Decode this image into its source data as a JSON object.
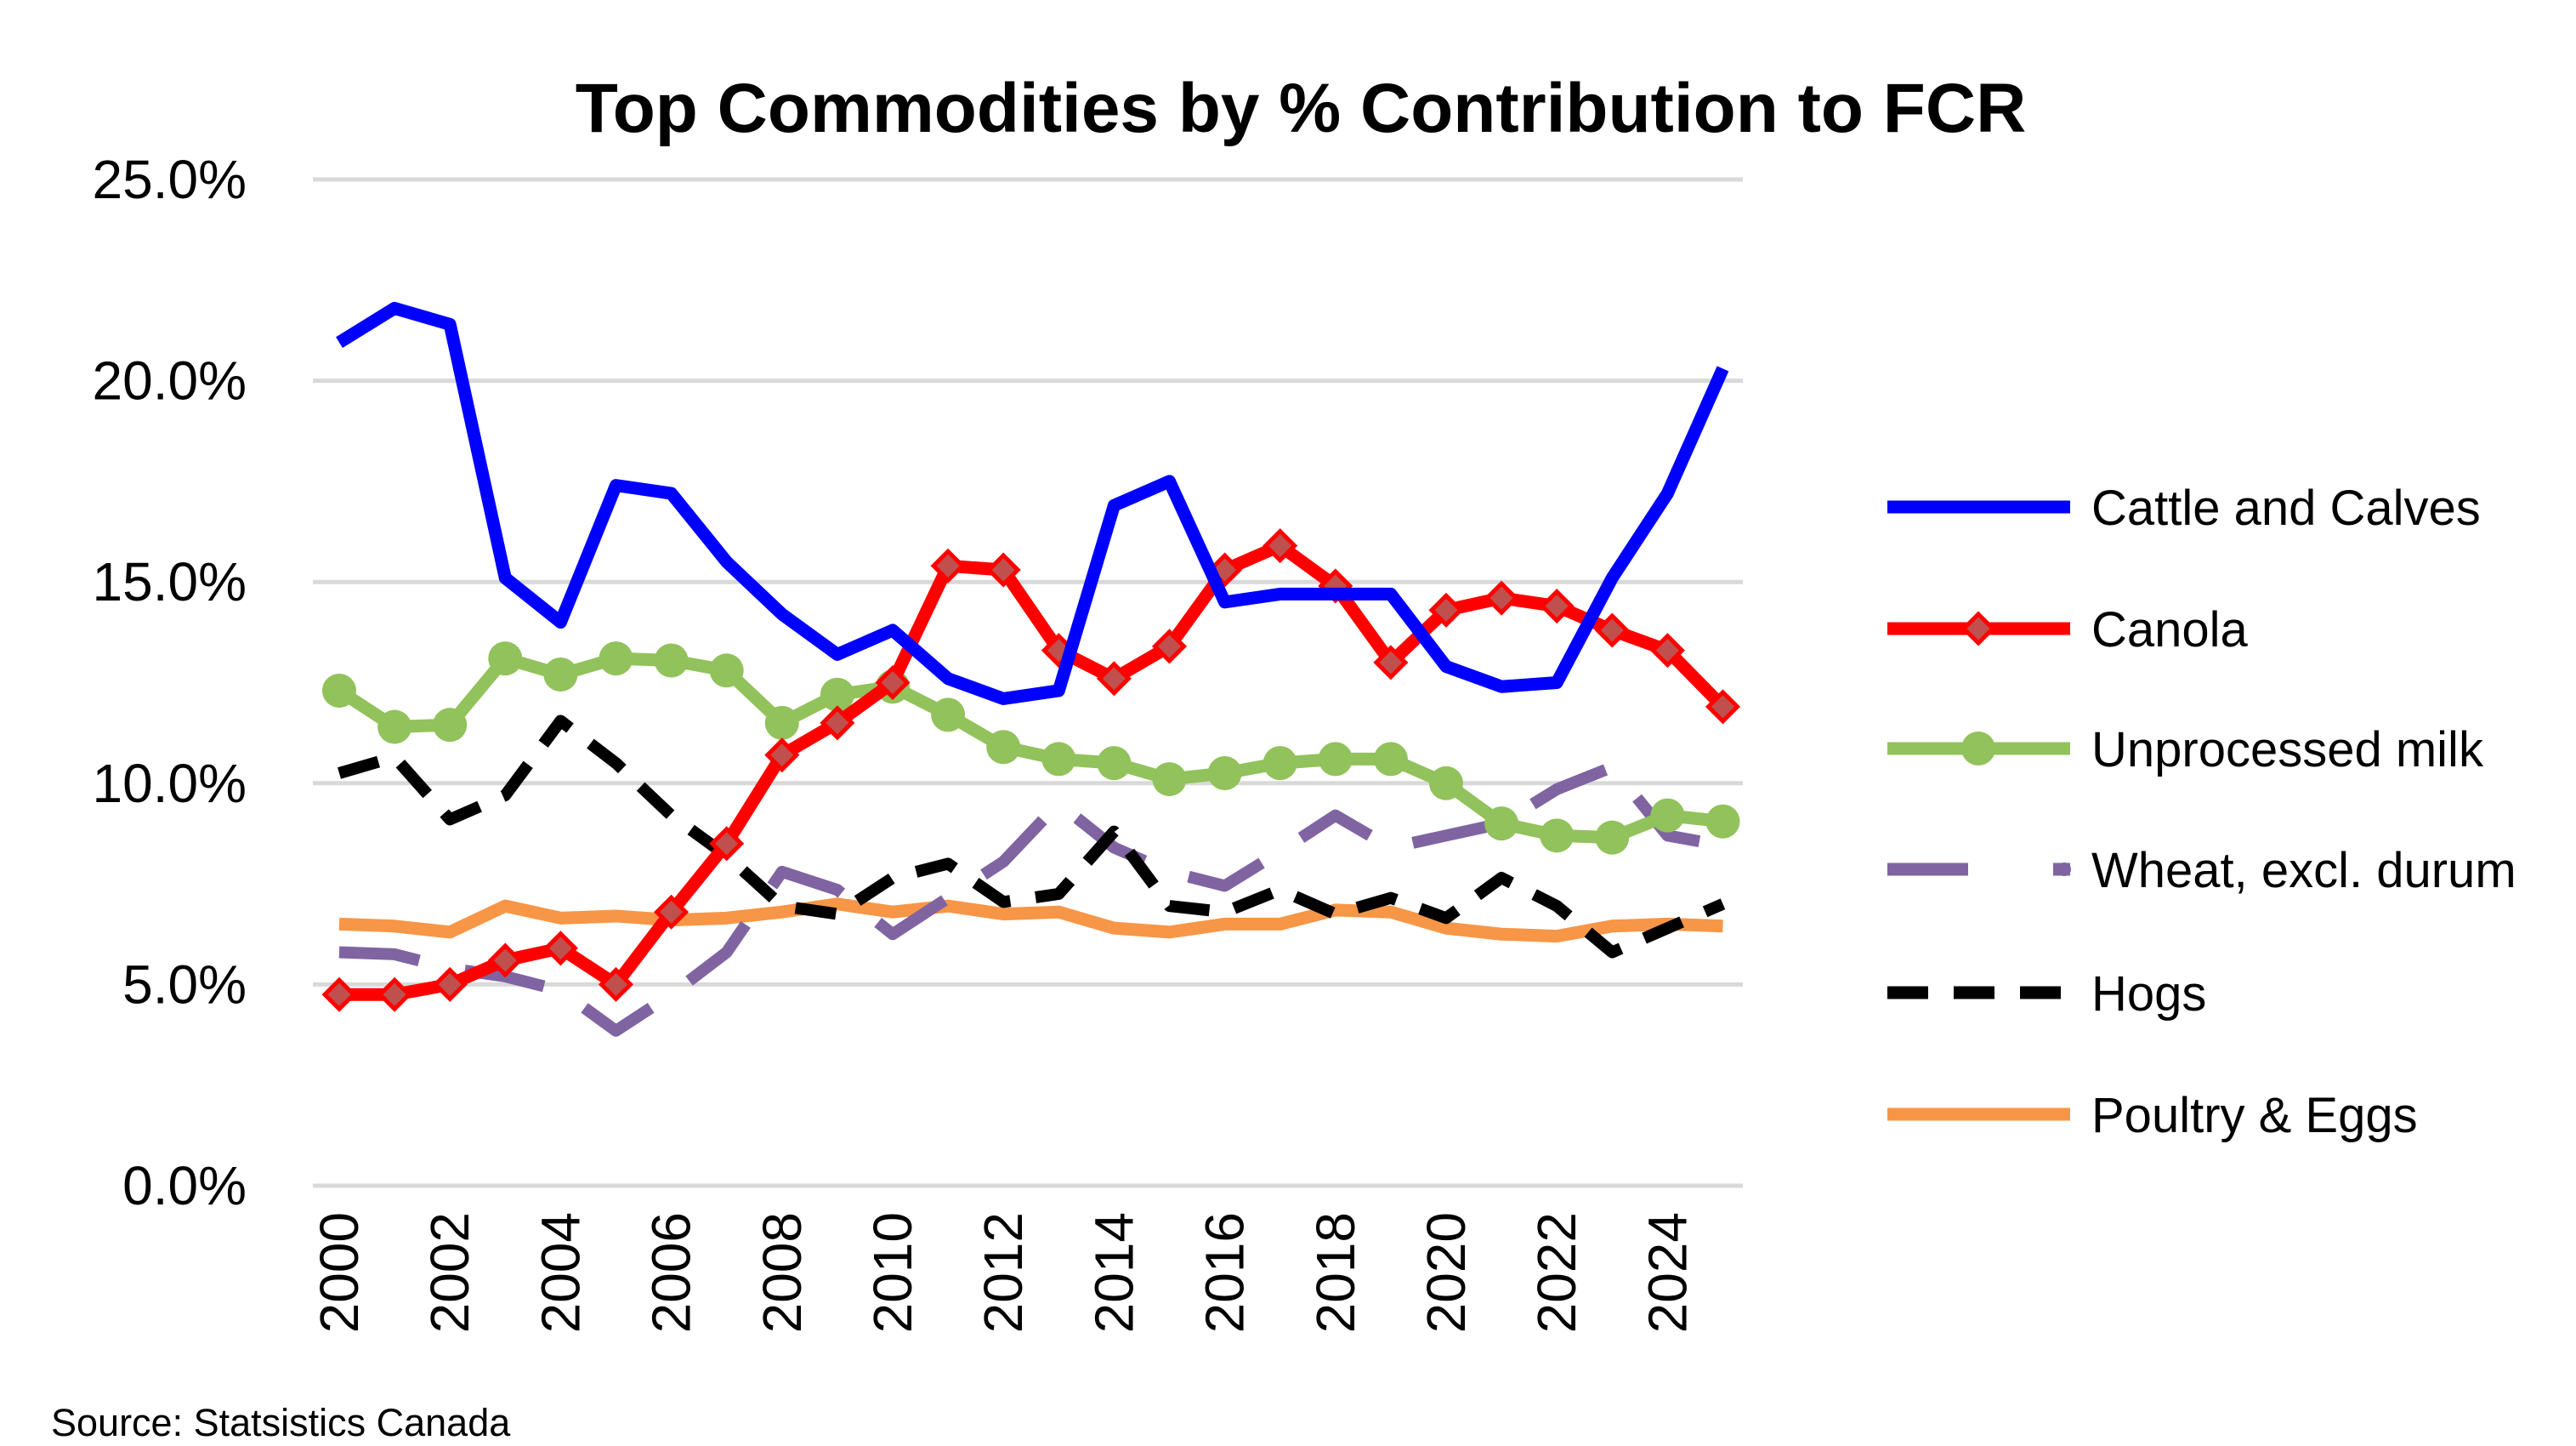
{
  "chart_data": {
    "type": "line",
    "title": "Top Commodities by % Contribution to FCR",
    "source": "Source: Statsistics Canada",
    "xlabel": "",
    "ylabel": "",
    "ylim": [
      0,
      25
    ],
    "yticks": [
      "0.0%",
      "5.0%",
      "10.0%",
      "15.0%",
      "20.0%",
      "25.0%"
    ],
    "xticks": [
      "2000",
      "2002",
      "2004",
      "2006",
      "2008",
      "2010",
      "2012",
      "2014",
      "2016",
      "2018",
      "2020",
      "2022",
      "2024"
    ],
    "grid": "horizontal",
    "legend_position": "right",
    "x": [
      2000,
      2001,
      2002,
      2003,
      2004,
      2005,
      2006,
      2007,
      2008,
      2009,
      2010,
      2011,
      2012,
      2013,
      2014,
      2015,
      2016,
      2017,
      2018,
      2019,
      2020,
      2021,
      2022,
      2023,
      2024,
      2025
    ],
    "series": [
      {
        "name": "Cattle and Calves",
        "color": "#0000FF",
        "style": "solid",
        "marker": "none",
        "values": [
          20.95,
          21.8,
          21.4,
          15.1,
          14.0,
          17.4,
          17.2,
          15.5,
          14.2,
          13.2,
          13.8,
          12.6,
          12.1,
          12.3,
          16.9,
          17.5,
          14.5,
          14.7,
          14.7,
          14.7,
          12.9,
          12.4,
          12.5,
          15.1,
          17.2,
          20.3
        ]
      },
      {
        "name": "Canola",
        "color": "#FF0000",
        "style": "solid",
        "marker": "diamond",
        "values": [
          4.75,
          4.75,
          5.0,
          5.6,
          5.9,
          5.0,
          6.8,
          8.5,
          10.7,
          11.5,
          12.5,
          15.4,
          15.3,
          13.3,
          12.6,
          13.4,
          15.3,
          15.9,
          14.9,
          13.0,
          14.3,
          14.6,
          14.4,
          13.8,
          13.3,
          11.9
        ]
      },
      {
        "name": "Unprocessed milk",
        "color": "#92C25B",
        "style": "solid",
        "marker": "circle",
        "values": [
          12.3,
          11.4,
          11.45,
          13.1,
          12.7,
          13.1,
          13.05,
          12.8,
          11.5,
          12.2,
          12.4,
          11.7,
          10.9,
          10.6,
          10.5,
          10.1,
          10.25,
          10.5,
          10.6,
          10.6,
          10.0,
          9.0,
          8.7,
          8.65,
          9.2,
          9.05
        ]
      },
      {
        "name": "Wheat, excl. durum",
        "color": "#8064A2",
        "style": "long-dash",
        "marker": "none",
        "values": [
          5.8,
          5.75,
          5.4,
          5.2,
          4.85,
          3.85,
          4.75,
          5.8,
          7.8,
          7.35,
          6.25,
          7.15,
          8.05,
          9.5,
          8.4,
          7.8,
          7.45,
          8.3,
          9.2,
          8.4,
          8.7,
          9.0,
          9.85,
          10.4,
          8.7,
          8.45
        ]
      },
      {
        "name": "Hogs",
        "color": "#000000",
        "style": "dash",
        "marker": "none",
        "values": [
          10.25,
          10.65,
          9.1,
          9.7,
          11.55,
          10.5,
          9.2,
          8.2,
          6.95,
          6.75,
          7.65,
          8.0,
          7.05,
          7.25,
          8.8,
          6.95,
          6.8,
          7.35,
          6.75,
          7.15,
          6.65,
          7.65,
          6.95,
          5.8,
          6.4,
          7.0
        ]
      },
      {
        "name": "Poultry & Eggs",
        "color": "#F79646",
        "style": "solid",
        "marker": "none",
        "values": [
          6.5,
          6.45,
          6.3,
          6.95,
          6.65,
          6.7,
          6.6,
          6.65,
          6.8,
          7.0,
          6.8,
          6.95,
          6.75,
          6.8,
          6.4,
          6.3,
          6.5,
          6.5,
          6.85,
          6.8,
          6.4,
          6.25,
          6.2,
          6.45,
          6.5,
          6.45
        ]
      }
    ]
  }
}
